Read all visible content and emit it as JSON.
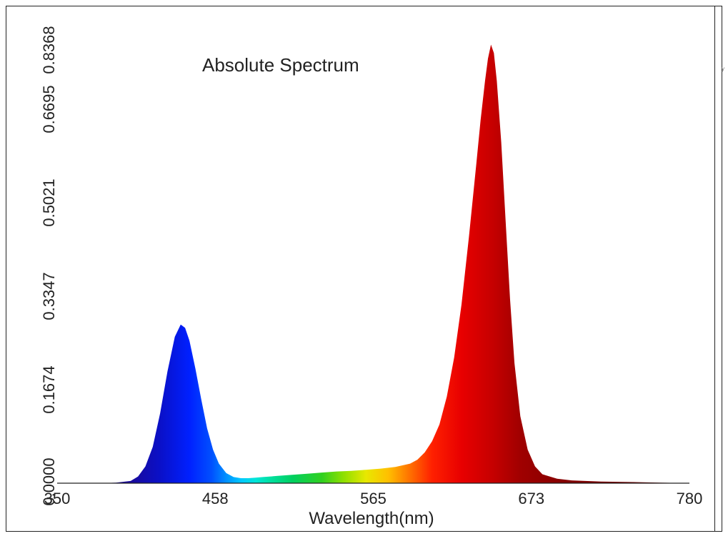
{
  "chart_data": {
    "type": "area",
    "title": "Absolute Spectrum",
    "xlabel": "Wavelength(nm)",
    "ylabel": "",
    "xlim": [
      350,
      780
    ],
    "ylim": [
      0,
      0.8368
    ],
    "x_ticks": [
      "350",
      "458",
      "565",
      "673",
      "780"
    ],
    "y_ticks": [
      "0.0000",
      "0.1674",
      "0.3347",
      "0.5021",
      "0.6695",
      "0.8368"
    ],
    "grid": false,
    "legend": "none",
    "fill": "spectral wavelength color gradient",
    "series": [
      {
        "x": [
          380,
          390,
          400,
          405,
          410,
          415,
          420,
          425,
          430,
          434,
          437,
          440,
          444,
          448,
          452,
          456,
          460,
          465,
          470,
          475,
          480,
          485,
          490,
          500,
          510,
          520,
          530,
          540,
          550,
          560,
          570,
          580,
          590,
          595,
          600,
          605,
          610,
          615,
          620,
          625,
          630,
          635,
          638,
          641,
          643,
          645,
          647,
          649,
          652,
          655,
          658,
          661,
          665,
          670,
          675,
          680,
          690,
          700,
          720,
          740,
          760,
          780
        ],
        "y": [
          0.0,
          0.001,
          0.004,
          0.012,
          0.03,
          0.065,
          0.125,
          0.2,
          0.262,
          0.284,
          0.278,
          0.255,
          0.205,
          0.15,
          0.098,
          0.06,
          0.035,
          0.018,
          0.011,
          0.009,
          0.009,
          0.01,
          0.011,
          0.013,
          0.015,
          0.017,
          0.019,
          0.021,
          0.022,
          0.024,
          0.026,
          0.029,
          0.035,
          0.042,
          0.055,
          0.075,
          0.105,
          0.155,
          0.225,
          0.32,
          0.44,
          0.57,
          0.65,
          0.72,
          0.76,
          0.785,
          0.77,
          0.72,
          0.61,
          0.47,
          0.33,
          0.215,
          0.12,
          0.06,
          0.03,
          0.016,
          0.008,
          0.005,
          0.003,
          0.002,
          0.001,
          0.0
        ]
      }
    ]
  }
}
